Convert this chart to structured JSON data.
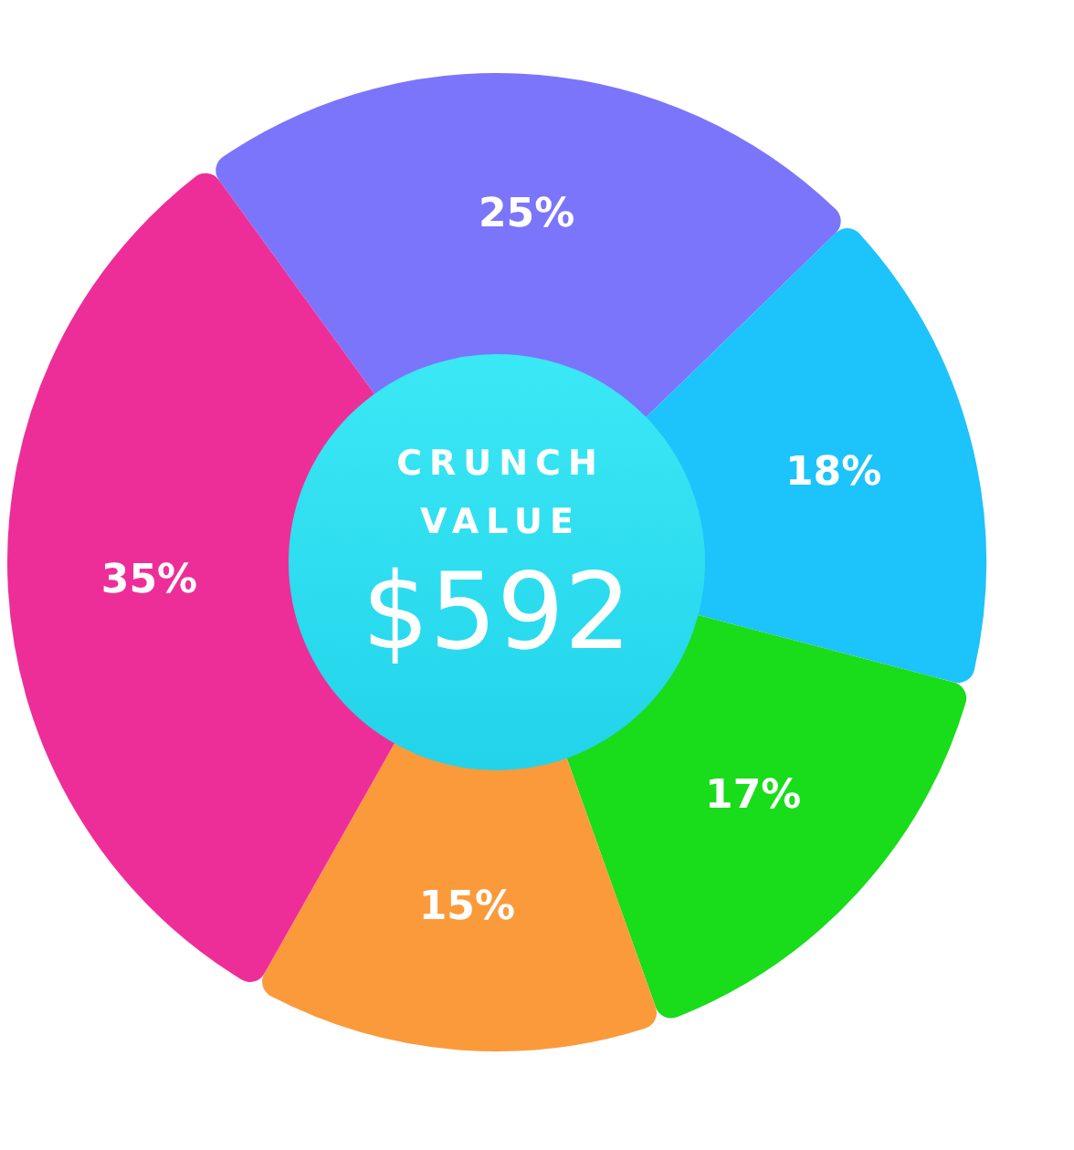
{
  "chart_data": {
    "type": "donut",
    "title": "CRUNCH VALUE",
    "annotations": [
      "$592"
    ],
    "categories": [
      null,
      null,
      null,
      null,
      null
    ],
    "values": [
      25,
      18,
      17,
      15,
      35
    ],
    "colors": [
      "#7b75fb",
      "#1dc3fb",
      "#19dc1a",
      "#fb9a3a",
      "#ee2e98"
    ],
    "value_labels": [
      "25%",
      "18%",
      "17%",
      "15%",
      "35%"
    ]
  }
}
